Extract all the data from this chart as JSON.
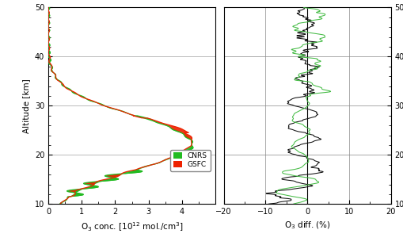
{
  "altitude_min": 10,
  "altitude_max": 50,
  "conc_xlim": [
    0,
    5
  ],
  "conc_xticks": [
    0,
    1,
    2,
    3,
    4
  ],
  "diff_xlim": [
    -20,
    20
  ],
  "diff_xticks": [
    -20,
    -10,
    0,
    10,
    20
  ],
  "yticks": [
    10,
    20,
    30,
    40,
    50
  ],
  "ylabel": "Altitude [km]",
  "xlabel_left": "O$_3$ conc. [10$^{12}$ mol./cm$^3$]",
  "xlabel_right": "O$_3$ diff. (%)",
  "cnrs_color": "#22bb22",
  "gsfc_color": "#ee2200",
  "black_color": "#111111",
  "green_diff_color": "#44bb44",
  "grid_color": "#888888",
  "bg_color": "#ffffff",
  "tick_label_size": 7,
  "axis_label_size": 7.5,
  "legend_fontsize": 6.5,
  "figsize": [
    5.09,
    3.14
  ],
  "dpi": 100
}
